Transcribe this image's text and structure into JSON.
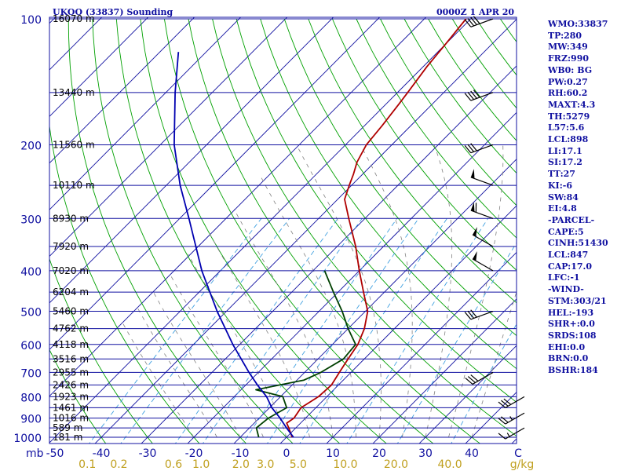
{
  "header": {
    "station": "UKOO (33837) Sounding",
    "time": "0000Z  1 APR 20"
  },
  "indices": [
    "WMO:33837",
    "TP:280",
    "MW:349",
    "FRZ:990",
    "WB0: BG",
    "PW:0.27",
    "RH:60.2",
    "MAXT:4.3",
    "TH:5279",
    "L57:5.6",
    "LCL:898",
    "LI:17.1",
    "SI:17.2",
    "TT:27",
    "KI:-6",
    "SW:84",
    "EI:4.8",
    "-PARCEL-",
    "CAPE:5",
    "CINH:51430",
    "LCL:847",
    "CAP:17.0",
    "LFC:-1",
    "-WIND-",
    "STM:303/21",
    "HEL:-193",
    "SHR+:0.0",
    "SRDS:108",
    "EHI:0.0",
    "BRN:0.0",
    "BSHR:184"
  ],
  "colors": {
    "frame": "#1010a0",
    "isobar": "#1010a0",
    "dry_adiabat": "#00a000",
    "moist_adiabat": "#808080",
    "mixing_ratio": "#40a0e0",
    "temperature": "#b00000",
    "dewpoint": "#004000",
    "parcel": "#0000b0",
    "pressure_label": "#1010a0",
    "height_label": "#000000",
    "mixing_label": "#c0a020"
  },
  "chart_data": {
    "type": "line",
    "title": "UKOO (33837) Sounding",
    "skewt": true,
    "pressure_levels": [
      100,
      200,
      300,
      400,
      500,
      600,
      700,
      800,
      900,
      1000
    ],
    "pressure_level_labels": [
      "100",
      "200",
      "300",
      "400",
      "500",
      "600",
      "700",
      "800",
      "900",
      "1000"
    ],
    "xlim": [
      -50,
      50
    ],
    "temperature_ticks": [
      -50,
      -40,
      -30,
      -20,
      -10,
      0,
      10,
      20,
      30,
      40,
      50
    ],
    "temperature_tick_labels": [
      "-50",
      "-40",
      "-30",
      "-20",
      "-10",
      "0",
      "10",
      "20",
      "30",
      "40",
      "C"
    ],
    "x_axis_prefix": "mb",
    "mixing_ratio_labels": [
      "0.1",
      "0.2",
      "0.6",
      "1.0",
      "2.0",
      "3.0",
      "5.0",
      "10.0",
      "20.0",
      "40.0",
      "g/kg"
    ],
    "heights": [
      {
        "p": 100,
        "label": "16070 m"
      },
      {
        "p": 150,
        "label": "13440 m"
      },
      {
        "p": 200,
        "label": "11560 m"
      },
      {
        "p": 250,
        "label": "10110 m"
      },
      {
        "p": 300,
        "label": "8930 m"
      },
      {
        "p": 350,
        "label": "7920 m"
      },
      {
        "p": 400,
        "label": "7020 m"
      },
      {
        "p": 450,
        "label": "6204 m"
      },
      {
        "p": 500,
        "label": "5460 m"
      },
      {
        "p": 550,
        "label": "4762 m"
      },
      {
        "p": 600,
        "label": "4118 m"
      },
      {
        "p": 650,
        "label": "3516 m"
      },
      {
        "p": 700,
        "label": "2955 m"
      },
      {
        "p": 750,
        "label": "2426 m"
      },
      {
        "p": 800,
        "label": "1923 m"
      },
      {
        "p": 850,
        "label": "1461 m"
      },
      {
        "p": 900,
        "label": "1016 m"
      },
      {
        "p": 950,
        "label": "589 m"
      },
      {
        "p": 1000,
        "label": "181 m"
      }
    ],
    "series": [
      {
        "key": "temperature",
        "points": [
          [
            1000,
            1.2
          ],
          [
            950,
            -1.5
          ],
          [
            925,
            -3.0
          ],
          [
            900,
            -2.5
          ],
          [
            850,
            -3.2
          ],
          [
            800,
            -1.8
          ],
          [
            750,
            -1.5
          ],
          [
            700,
            -2.5
          ],
          [
            650,
            -3.5
          ],
          [
            600,
            -4.5
          ],
          [
            550,
            -6.5
          ],
          [
            500,
            -9.5
          ],
          [
            450,
            -14.5
          ],
          [
            400,
            -20.0
          ],
          [
            350,
            -26.0
          ],
          [
            300,
            -33.5
          ],
          [
            270,
            -38.5
          ],
          [
            250,
            -40.5
          ],
          [
            235,
            -42.0
          ],
          [
            220,
            -43.8
          ],
          [
            200,
            -45.5
          ],
          [
            180,
            -46.2
          ],
          [
            160,
            -47.2
          ],
          [
            150,
            -47.8
          ],
          [
            130,
            -49.2
          ],
          [
            115,
            -50.0
          ],
          [
            100,
            -51.0
          ]
        ]
      },
      {
        "key": "dewpoint",
        "points": [
          [
            1000,
            -6.0
          ],
          [
            950,
            -8.5
          ],
          [
            900,
            -8.0
          ],
          [
            850,
            -6.3
          ],
          [
            800,
            -9.5
          ],
          [
            770,
            -16.8
          ],
          [
            730,
            -8.5
          ],
          [
            700,
            -6.5
          ],
          [
            650,
            -4.5
          ],
          [
            600,
            -5.0
          ],
          [
            550,
            -10.0
          ],
          [
            500,
            -15.0
          ],
          [
            450,
            -21.0
          ],
          [
            400,
            -27.5
          ]
        ]
      },
      {
        "key": "parcel",
        "points": [
          [
            1000,
            1.5
          ],
          [
            950,
            -2.0
          ],
          [
            900,
            -5.5
          ],
          [
            850,
            -9.5
          ],
          [
            800,
            -13.0
          ],
          [
            750,
            -17.5
          ],
          [
            700,
            -22.0
          ],
          [
            600,
            -31.5
          ],
          [
            500,
            -42.0
          ],
          [
            400,
            -54.0
          ],
          [
            300,
            -68.0
          ],
          [
            250,
            -77.0
          ],
          [
            200,
            -87.0
          ],
          [
            150,
            -98.0
          ],
          [
            120,
            -106.0
          ]
        ]
      }
    ],
    "wind_barbs": [
      {
        "p": 100,
        "dir": 250,
        "spd": 40
      },
      {
        "p": 150,
        "dir": 250,
        "spd": 40
      },
      {
        "p": 200,
        "dir": 250,
        "spd": 30
      },
      {
        "p": 250,
        "dir": 290,
        "spd": 50
      },
      {
        "p": 300,
        "dir": 290,
        "spd": 60
      },
      {
        "p": 350,
        "dir": 300,
        "spd": 50
      },
      {
        "p": 400,
        "dir": 300,
        "spd": 50
      },
      {
        "p": 500,
        "dir": 250,
        "spd": 30
      },
      {
        "p": 700,
        "dir": 240,
        "spd": 30
      }
    ],
    "hodograph_barbs": [
      {
        "p": 800,
        "dir": 240,
        "spd": 30
      },
      {
        "p": 875,
        "dir": 240,
        "spd": 25
      },
      {
        "p": 950,
        "dir": 240,
        "spd": 15
      }
    ]
  }
}
